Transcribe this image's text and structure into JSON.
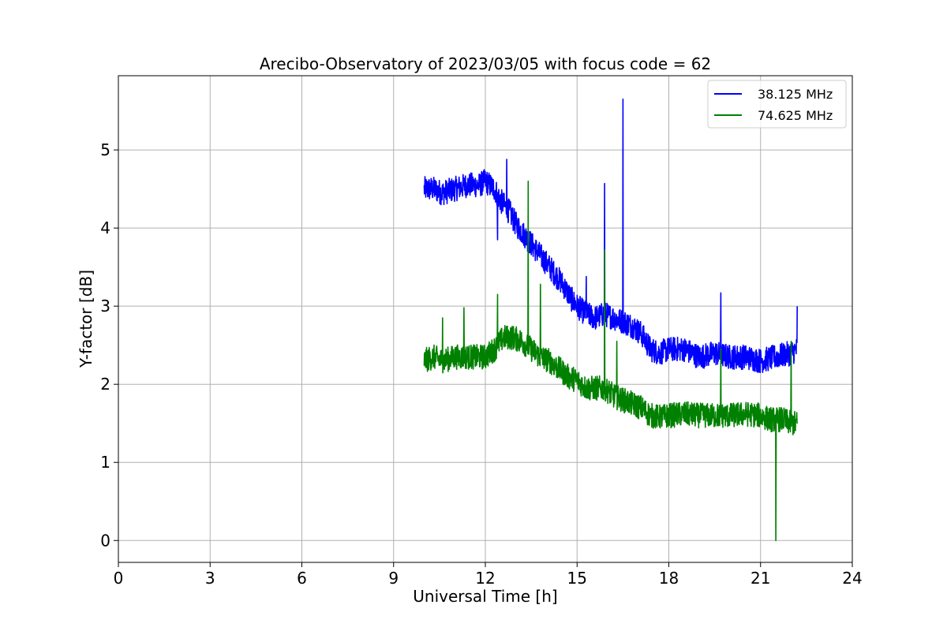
{
  "chart_data": {
    "type": "line",
    "title": "Arecibo-Observatory of 2023/03/05 with focus code = 62",
    "xlabel": "Universal Time [h]",
    "ylabel": "Y-factor [dB]",
    "xlim": [
      0,
      24
    ],
    "ylim": [
      -0.28,
      5.95
    ],
    "x_ticks": [
      0,
      3,
      6,
      9,
      12,
      15,
      18,
      21,
      24
    ],
    "y_ticks": [
      0,
      1,
      2,
      3,
      4,
      5
    ],
    "grid": true,
    "legend_position": "top-right",
    "series": [
      {
        "name": "38.125 MHz",
        "color": "#0000ff",
        "x": [
          10.0,
          10.3,
          10.6,
          11.0,
          11.4,
          11.8,
          12.0,
          12.3,
          12.5,
          12.8,
          13.0,
          13.3,
          13.6,
          13.9,
          14.2,
          14.5,
          14.8,
          15.0,
          15.3,
          15.6,
          15.9,
          16.2,
          16.5,
          16.8,
          17.1,
          17.4,
          17.7,
          18.0,
          18.5,
          19.0,
          19.5,
          20.0,
          20.5,
          21.0,
          21.5,
          22.0,
          22.2
        ],
        "y": [
          4.5,
          4.5,
          4.45,
          4.5,
          4.55,
          4.55,
          4.6,
          4.5,
          4.35,
          4.2,
          4.05,
          3.9,
          3.75,
          3.6,
          3.45,
          3.3,
          3.1,
          3.0,
          2.9,
          2.85,
          2.9,
          2.85,
          2.8,
          2.75,
          2.65,
          2.45,
          2.4,
          2.45,
          2.45,
          2.35,
          2.4,
          2.35,
          2.35,
          2.3,
          2.35,
          2.4,
          2.45
        ],
        "spikes": [
          [
            12.4,
            3.85
          ],
          [
            12.7,
            4.88
          ],
          [
            15.3,
            3.38
          ],
          [
            15.9,
            4.57
          ],
          [
            16.5,
            5.65
          ],
          [
            19.7,
            3.17
          ],
          [
            22.2,
            3.0
          ]
        ]
      },
      {
        "name": "74.625 MHz",
        "color": "#008000",
        "x": [
          10.0,
          10.3,
          10.6,
          11.0,
          11.4,
          11.8,
          12.0,
          12.3,
          12.6,
          12.9,
          13.2,
          13.5,
          13.8,
          14.1,
          14.4,
          14.7,
          15.0,
          15.3,
          15.6,
          15.9,
          16.2,
          16.5,
          16.8,
          17.1,
          17.4,
          17.7,
          18.0,
          18.5,
          19.0,
          19.5,
          20.0,
          20.5,
          21.0,
          21.3,
          21.5,
          21.7,
          22.0,
          22.2
        ],
        "y": [
          2.3,
          2.35,
          2.3,
          2.35,
          2.35,
          2.35,
          2.35,
          2.45,
          2.6,
          2.6,
          2.55,
          2.45,
          2.35,
          2.3,
          2.2,
          2.1,
          2.05,
          1.95,
          1.95,
          1.95,
          1.85,
          1.8,
          1.75,
          1.7,
          1.6,
          1.58,
          1.6,
          1.62,
          1.6,
          1.6,
          1.6,
          1.62,
          1.6,
          1.55,
          1.55,
          1.55,
          1.5,
          1.5
        ],
        "spikes": [
          [
            10.6,
            2.85
          ],
          [
            11.3,
            2.98
          ],
          [
            12.4,
            3.15
          ],
          [
            13.4,
            4.6
          ],
          [
            13.8,
            3.28
          ],
          [
            15.9,
            3.72
          ],
          [
            16.3,
            2.55
          ],
          [
            19.7,
            2.45
          ],
          [
            21.5,
            0.0
          ],
          [
            22.0,
            2.55
          ]
        ]
      }
    ]
  }
}
